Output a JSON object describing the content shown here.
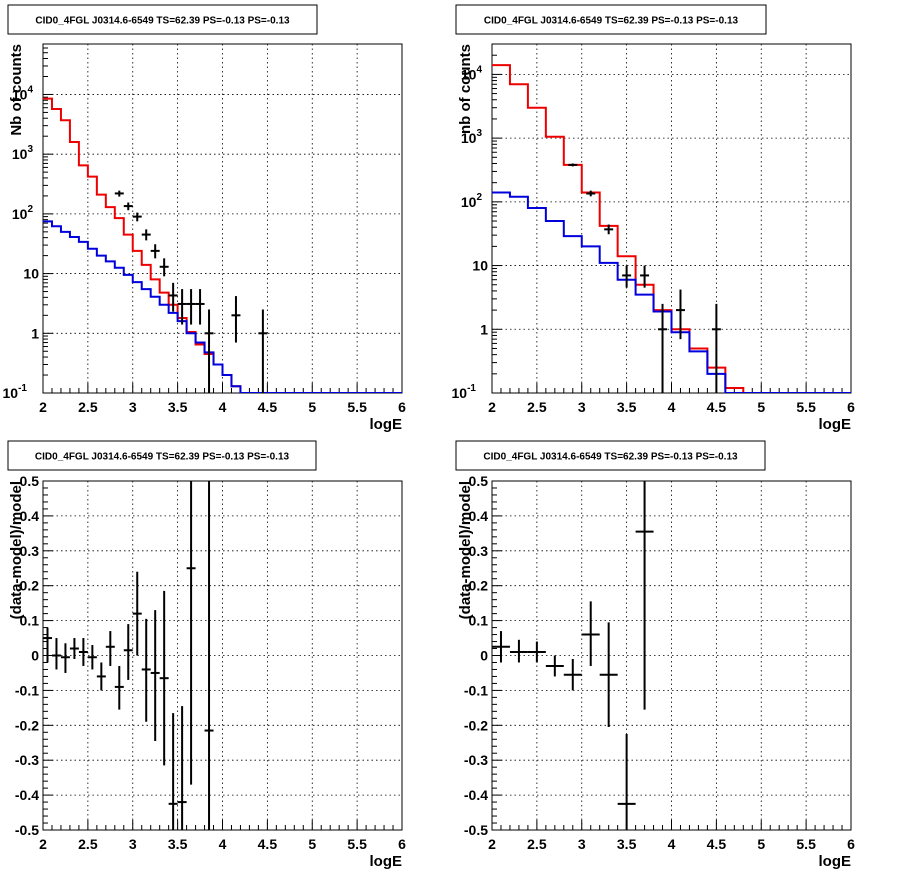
{
  "chart_data": [
    {
      "type": "line",
      "title": "CID0_4FGL J0314.6-6549 TS=62.39 PS=-0.13 PS=-0.13",
      "xlabel": "logE",
      "ylabel": "Nb of counts",
      "xlim": [
        2,
        6
      ],
      "ylim": [
        0.1,
        70000
      ],
      "yscale": "log",
      "grid": true,
      "x_ticks": [
        "2",
        "2.5",
        "3",
        "3.5",
        "4",
        "4.5",
        "5",
        "5.5",
        "6"
      ],
      "y_ticks": [
        "10^-1",
        "1",
        "10",
        "10^2",
        "10^3",
        "10^4"
      ],
      "bin_edges": [
        2.0,
        2.1,
        2.2,
        2.3,
        2.4,
        2.5,
        2.6,
        2.7,
        2.8,
        2.9,
        3.0,
        3.1,
        3.2,
        3.3,
        3.4,
        3.5,
        3.6,
        3.7,
        3.8,
        3.9,
        4.0,
        4.1,
        4.2,
        4.3,
        4.4,
        4.5,
        4.6,
        4.7,
        4.8,
        4.9,
        5.0,
        5.1,
        5.2,
        5.3,
        5.4,
        5.5,
        5.6,
        5.7,
        5.8,
        5.9,
        6.0
      ],
      "series": [
        {
          "color": "#ee0000",
          "values": [
            8500,
            5700,
            3700,
            1600,
            650,
            420,
            210,
            130,
            85,
            45,
            24,
            14,
            8,
            4.8,
            3.0,
            1.8,
            1.05,
            0.65,
            0.45,
            0.3,
            0.2,
            0.13,
            0.1,
            0.1,
            0.1,
            0.1,
            0.1,
            0.1,
            0.1,
            0.1,
            0.1,
            0.1,
            0.1,
            0.1,
            0.1,
            0.1,
            0.1,
            0.1,
            0.1,
            0.1
          ]
        },
        {
          "color": "#0000dd",
          "values": [
            75,
            62,
            50,
            41,
            34,
            26,
            20,
            16,
            12.5,
            9.5,
            7.2,
            5.5,
            4.1,
            3.0,
            2.2,
            1.6,
            1.0,
            0.7,
            0.48,
            0.3,
            0.2,
            0.13,
            0.1,
            0.1,
            0.1,
            0.1,
            0.1,
            0.1,
            0.1,
            0.1,
            0.1,
            0.1,
            0.1,
            0.1,
            0.1,
            0.1,
            0.1,
            0.1,
            0.1,
            0.1
          ]
        },
        {
          "color": "#000000",
          "kind": "data",
          "points": [
            {
              "x": 2.85,
              "y": 220,
              "lo": 195,
              "hi": 245
            },
            {
              "x": 2.95,
              "y": 135,
              "lo": 115,
              "hi": 155
            },
            {
              "x": 3.05,
              "y": 90,
              "lo": 75,
              "hi": 105
            },
            {
              "x": 3.15,
              "y": 45,
              "lo": 36,
              "hi": 55
            },
            {
              "x": 3.25,
              "y": 24,
              "lo": 18,
              "hi": 31
            },
            {
              "x": 3.35,
              "y": 13,
              "lo": 9,
              "hi": 18
            },
            {
              "x": 3.45,
              "y": 4.3,
              "lo": 2.3,
              "hi": 7
            },
            {
              "x": 3.55,
              "y": 3.1,
              "lo": 1.4,
              "hi": 5.5
            },
            {
              "x": 3.65,
              "y": 3.1,
              "lo": 1.4,
              "hi": 5.5
            },
            {
              "x": 3.75,
              "y": 3.1,
              "lo": 1.4,
              "hi": 5.5
            },
            {
              "x": 3.85,
              "y": 1.0,
              "lo": 0.1,
              "hi": 2.5
            },
            {
              "x": 4.15,
              "y": 2.0,
              "lo": 0.7,
              "hi": 4.2
            },
            {
              "x": 4.45,
              "y": 1.0,
              "lo": 0.1,
              "hi": 2.5
            }
          ]
        }
      ]
    },
    {
      "type": "line",
      "title": "CID0_4FGL J0314.6-6549 TS=62.39 PS=-0.13 PS=-0.13",
      "xlabel": "logE",
      "ylabel": "nb of counts",
      "xlim": [
        2,
        6
      ],
      "ylim": [
        0.1,
        30000
      ],
      "yscale": "log",
      "grid": true,
      "x_ticks": [
        "2",
        "2.5",
        "3",
        "3.5",
        "4",
        "4.5",
        "5",
        "5.5",
        "6"
      ],
      "y_ticks": [
        "10^-1",
        "1",
        "10",
        "10^2",
        "10^3",
        "10^4"
      ],
      "bin_edges": [
        2.0,
        2.2,
        2.4,
        2.6,
        2.8,
        3.0,
        3.2,
        3.4,
        3.6,
        3.8,
        4.0,
        4.2,
        4.4,
        4.6,
        4.8,
        5.0,
        5.2,
        5.4,
        5.6,
        5.8,
        6.0
      ],
      "series": [
        {
          "color": "#ee0000",
          "values": [
            14000,
            7000,
            3000,
            1050,
            380,
            140,
            42,
            14,
            5,
            2.0,
            1.0,
            0.5,
            0.25,
            0.12,
            0.1,
            0.1,
            0.1,
            0.1,
            0.1,
            0.1
          ]
        },
        {
          "color": "#0000dd",
          "values": [
            140,
            120,
            80,
            50,
            29,
            20,
            11,
            6,
            3.5,
            1.9,
            0.9,
            0.45,
            0.2,
            0.1,
            0.1,
            0.1,
            0.1,
            0.1,
            0.1,
            0.1
          ]
        },
        {
          "color": "#000000",
          "kind": "data",
          "points": [
            {
              "x": 2.9,
              "y": 380,
              "lo": 360,
              "hi": 400
            },
            {
              "x": 3.1,
              "y": 135,
              "lo": 122,
              "hi": 150
            },
            {
              "x": 3.3,
              "y": 37,
              "lo": 31,
              "hi": 44
            },
            {
              "x": 3.5,
              "y": 7,
              "lo": 4.5,
              "hi": 10
            },
            {
              "x": 3.7,
              "y": 7,
              "lo": 4.5,
              "hi": 10
            },
            {
              "x": 3.9,
              "y": 1.0,
              "lo": 0.1,
              "hi": 2.5
            },
            {
              "x": 4.1,
              "y": 2.0,
              "lo": 0.7,
              "hi": 4.2
            },
            {
              "x": 4.5,
              "y": 1.0,
              "lo": 0.1,
              "hi": 2.5
            }
          ]
        }
      ]
    },
    {
      "type": "scatter",
      "title": "CID0_4FGL J0314.6-6549 TS=62.39 PS=-0.13 PS=-0.13",
      "xlabel": "logE",
      "ylabel": "(data-model)/model",
      "xlim": [
        2,
        6
      ],
      "ylim": [
        -0.5,
        0.5
      ],
      "grid": true,
      "x_ticks": [
        "2",
        "2.5",
        "3",
        "3.5",
        "4",
        "4.5",
        "5",
        "5.5",
        "6"
      ],
      "y_ticks": [
        "-0.5",
        "-0.4",
        "-0.3",
        "-0.2",
        "-0.1",
        "0",
        "0.1",
        "0.2",
        "0.3",
        "0.4",
        "0.5"
      ],
      "series": [
        {
          "color": "#000000",
          "points": [
            {
              "x": 2.05,
              "y": 0.05,
              "lo": -0.02,
              "hi": 0.08,
              "hw": 0.05
            },
            {
              "x": 2.15,
              "y": 0.0,
              "lo": -0.04,
              "hi": 0.05,
              "hw": 0.05
            },
            {
              "x": 2.25,
              "y": -0.005,
              "lo": -0.05,
              "hi": 0.035,
              "hw": 0.05
            },
            {
              "x": 2.35,
              "y": 0.02,
              "lo": -0.01,
              "hi": 0.05,
              "hw": 0.05
            },
            {
              "x": 2.45,
              "y": 0.01,
              "lo": -0.03,
              "hi": 0.05,
              "hw": 0.05
            },
            {
              "x": 2.55,
              "y": -0.005,
              "lo": -0.04,
              "hi": 0.03,
              "hw": 0.05
            },
            {
              "x": 2.65,
              "y": -0.06,
              "lo": -0.1,
              "hi": -0.02,
              "hw": 0.05
            },
            {
              "x": 2.75,
              "y": 0.025,
              "lo": -0.03,
              "hi": 0.07,
              "hw": 0.05
            },
            {
              "x": 2.85,
              "y": -0.09,
              "lo": -0.155,
              "hi": -0.03,
              "hw": 0.05
            },
            {
              "x": 2.95,
              "y": 0.015,
              "lo": -0.07,
              "hi": 0.09,
              "hw": 0.05
            },
            {
              "x": 3.05,
              "y": 0.12,
              "lo": 0.0,
              "hi": 0.24,
              "hw": 0.05
            },
            {
              "x": 3.15,
              "y": -0.04,
              "lo": -0.19,
              "hi": 0.105,
              "hw": 0.05
            },
            {
              "x": 3.25,
              "y": -0.05,
              "lo": -0.245,
              "hi": 0.13,
              "hw": 0.05
            },
            {
              "x": 3.35,
              "y": -0.065,
              "lo": -0.315,
              "hi": 0.185,
              "hw": 0.05
            },
            {
              "x": 3.45,
              "y": -0.425,
              "lo": -0.5,
              "hi": -0.165,
              "hw": 0.05
            },
            {
              "x": 3.55,
              "y": -0.42,
              "lo": -0.5,
              "hi": -0.145,
              "hw": 0.05
            },
            {
              "x": 3.65,
              "y": 0.25,
              "lo": -0.37,
              "hi": 0.5,
              "hw": 0.05
            },
            {
              "x": 3.85,
              "y": -0.215,
              "lo": -0.5,
              "hi": 0.5,
              "hw": 0.05
            }
          ]
        }
      ]
    },
    {
      "type": "scatter",
      "title": "CID0_4FGL J0314.6-6549 TS=62.39 PS=-0.13 PS=-0.13",
      "xlabel": "logE",
      "ylabel": "(data-model)/model",
      "xlim": [
        2,
        6
      ],
      "ylim": [
        -0.5,
        0.5
      ],
      "grid": true,
      "x_ticks": [
        "2",
        "2.5",
        "3",
        "3.5",
        "4",
        "4.5",
        "5",
        "5.5",
        "6"
      ],
      "y_ticks": [
        "-0.5",
        "-0.4",
        "-0.3",
        "-0.2",
        "-0.1",
        "0",
        "0.1",
        "0.2",
        "0.3",
        "0.4",
        "0.5"
      ],
      "series": [
        {
          "color": "#000000",
          "points": [
            {
              "x": 2.1,
              "y": 0.025,
              "lo": -0.02,
              "hi": 0.07,
              "hw": 0.1
            },
            {
              "x": 2.3,
              "y": 0.01,
              "lo": -0.02,
              "hi": 0.045,
              "hw": 0.1
            },
            {
              "x": 2.5,
              "y": 0.01,
              "lo": -0.02,
              "hi": 0.04,
              "hw": 0.1
            },
            {
              "x": 2.7,
              "y": -0.03,
              "lo": -0.06,
              "hi": 0.0,
              "hw": 0.1
            },
            {
              "x": 2.9,
              "y": -0.055,
              "lo": -0.1,
              "hi": -0.01,
              "hw": 0.1
            },
            {
              "x": 3.1,
              "y": 0.06,
              "lo": -0.03,
              "hi": 0.155,
              "hw": 0.1
            },
            {
              "x": 3.3,
              "y": -0.055,
              "lo": -0.205,
              "hi": 0.095,
              "hw": 0.1
            },
            {
              "x": 3.5,
              "y": -0.425,
              "lo": -0.5,
              "hi": -0.225,
              "hw": 0.1
            },
            {
              "x": 3.7,
              "y": 0.355,
              "lo": -0.155,
              "hi": 0.5,
              "hw": 0.1
            }
          ]
        }
      ]
    }
  ]
}
